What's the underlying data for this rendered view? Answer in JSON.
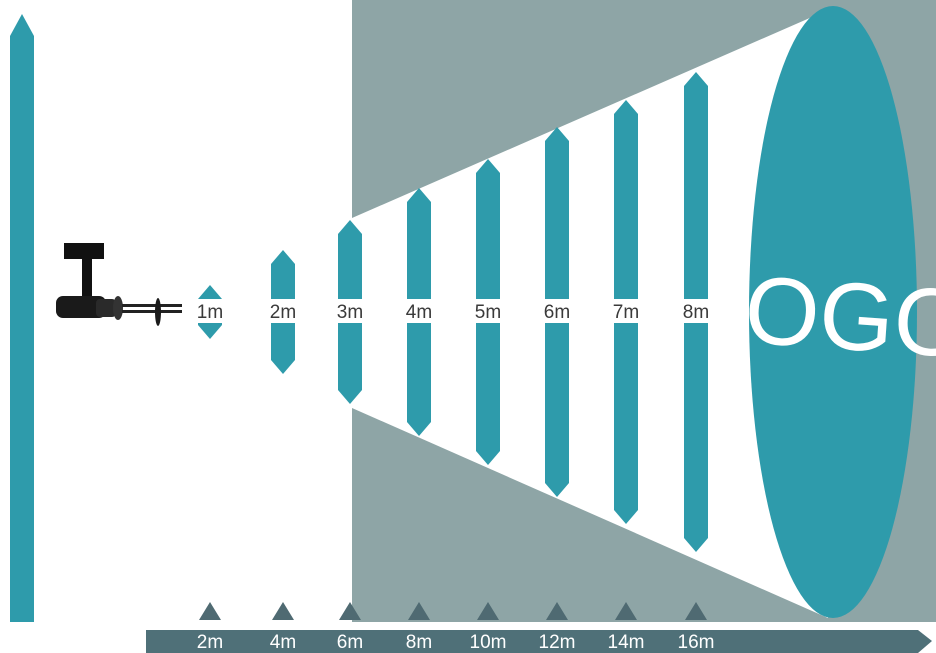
{
  "colors": {
    "beam": "#2e9bab",
    "background_panel": "#8ea5a6",
    "axis_bar": "#4f7078",
    "axis_marker": "#4f6a72",
    "light_beam": "#ffffff",
    "label_text": "#3a3a3a"
  },
  "logo_text": "LOGO",
  "projector_icon": "gobo-projector-icon",
  "distances": [
    {
      "label": "1m",
      "axis_label": "2m"
    },
    {
      "label": "2m",
      "axis_label": "4m"
    },
    {
      "label": "3m",
      "axis_label": "6m"
    },
    {
      "label": "4m",
      "axis_label": "8m"
    },
    {
      "label": "5m",
      "axis_label": "10m"
    },
    {
      "label": "6m",
      "axis_label": "12m"
    },
    {
      "label": "7m",
      "axis_label": "14m"
    },
    {
      "label": "8m",
      "axis_label": "16m"
    }
  ]
}
